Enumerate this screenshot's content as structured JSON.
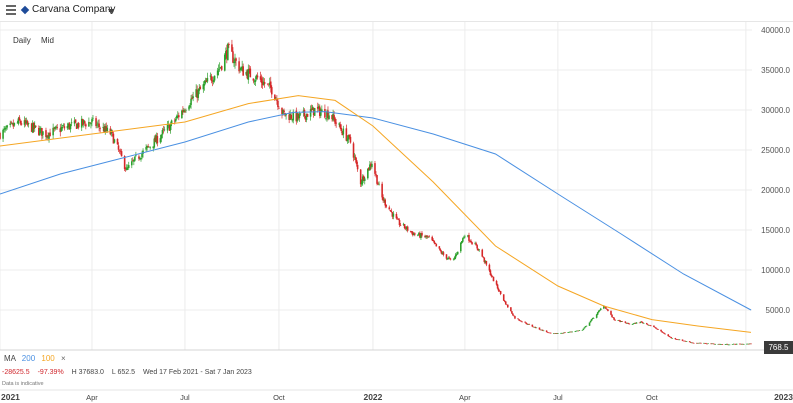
{
  "header": {
    "instrument": "Carvana Company"
  },
  "timeframe": {
    "interval": "Daily",
    "price_type": "Mid"
  },
  "legend": {
    "label": "MA",
    "period_1": "200",
    "period_2": "100",
    "close_glyph": "×"
  },
  "stats": {
    "change": "-28625.5",
    "change_pct": "-97.39%",
    "high": "H 37683.0",
    "low": "L 652.5",
    "range": "Wed 17 Feb 2021 - Sat 7 Jan 2023"
  },
  "note": "Data is indicative",
  "last_price": "768.5",
  "colors": {
    "up": "#2ca02c",
    "down": "#d62728",
    "ma200": "#4a90e2",
    "ma100": "#f5a623",
    "grid": "#ececec"
  },
  "chart_data": {
    "type": "candlestick",
    "y_ticks": [
      "40000.0",
      "35000.0",
      "30000.0",
      "25000.0",
      "20000.0",
      "15000.0",
      "10000.0",
      "5000.0"
    ],
    "x_ticks": [
      "2021",
      "Apr",
      "Jul",
      "Oct",
      "2022",
      "Apr",
      "Jul",
      "Oct",
      "2023"
    ],
    "ylim": [
      0,
      41000
    ],
    "xlim": [
      "2021-01-01",
      "2023-01-07"
    ],
    "grid": true,
    "price_path": [
      [
        "2021-01-01",
        27000
      ],
      [
        "2021-01-20",
        28500
      ],
      [
        "2021-02-15",
        27000
      ],
      [
        "2021-03-10",
        28000
      ],
      [
        "2021-04-01",
        28500
      ],
      [
        "2021-04-20",
        27000
      ],
      [
        "2021-05-05",
        22500
      ],
      [
        "2021-05-15",
        24000
      ],
      [
        "2021-06-01",
        26000
      ],
      [
        "2021-06-20",
        28500
      ],
      [
        "2021-07-05",
        31000
      ],
      [
        "2021-07-20",
        33000
      ],
      [
        "2021-08-05",
        35500
      ],
      [
        "2021-08-12",
        37500
      ],
      [
        "2021-08-25",
        35000
      ],
      [
        "2021-09-10",
        34000
      ],
      [
        "2021-09-25",
        32500
      ],
      [
        "2021-10-05",
        29500
      ],
      [
        "2021-10-20",
        29000
      ],
      [
        "2021-11-05",
        30000
      ],
      [
        "2021-11-20",
        29500
      ],
      [
        "2021-12-01",
        27500
      ],
      [
        "2021-12-10",
        26000
      ],
      [
        "2021-12-20",
        21000
      ],
      [
        "2021-12-31",
        23500
      ],
      [
        "2022-01-10",
        19000
      ],
      [
        "2022-01-25",
        16000
      ],
      [
        "2022-02-10",
        14500
      ],
      [
        "2022-02-25",
        14000
      ],
      [
        "2022-03-10",
        12000
      ],
      [
        "2022-03-20",
        11000
      ],
      [
        "2022-04-01",
        14500
      ],
      [
        "2022-04-15",
        12500
      ],
      [
        "2022-04-28",
        9000
      ],
      [
        "2022-05-10",
        6000
      ],
      [
        "2022-05-20",
        4000
      ],
      [
        "2022-06-05",
        3000
      ],
      [
        "2022-06-25",
        2000
      ],
      [
        "2022-07-10",
        2200
      ],
      [
        "2022-07-25",
        2500
      ],
      [
        "2022-08-08",
        4500
      ],
      [
        "2022-08-15",
        5600
      ],
      [
        "2022-08-25",
        3800
      ],
      [
        "2022-09-10",
        3200
      ],
      [
        "2022-09-20",
        3500
      ],
      [
        "2022-10-01",
        3000
      ],
      [
        "2022-10-20",
        1500
      ],
      [
        "2022-11-10",
        900
      ],
      [
        "2022-12-10",
        700
      ],
      [
        "2023-01-06",
        768.5
      ]
    ],
    "ma200": [
      [
        "2021-01-01",
        19500
      ],
      [
        "2021-03-01",
        22000
      ],
      [
        "2021-05-01",
        24000
      ],
      [
        "2021-07-01",
        26000
      ],
      [
        "2021-09-01",
        28500
      ],
      [
        "2021-10-15",
        29700
      ],
      [
        "2021-11-15",
        29800
      ],
      [
        "2022-01-01",
        29000
      ],
      [
        "2022-03-01",
        27000
      ],
      [
        "2022-05-01",
        24500
      ],
      [
        "2022-07-01",
        19500
      ],
      [
        "2022-09-01",
        14500
      ],
      [
        "2022-11-01",
        9500
      ],
      [
        "2023-01-06",
        5000
      ]
    ],
    "ma100": [
      [
        "2021-01-01",
        25500
      ],
      [
        "2021-04-01",
        27000
      ],
      [
        "2021-07-01",
        28500
      ],
      [
        "2021-09-01",
        30800
      ],
      [
        "2021-10-20",
        31800
      ],
      [
        "2021-11-25",
        31200
      ],
      [
        "2022-01-01",
        28000
      ],
      [
        "2022-03-01",
        21000
      ],
      [
        "2022-05-01",
        13000
      ],
      [
        "2022-07-01",
        8000
      ],
      [
        "2022-08-15",
        5500
      ],
      [
        "2022-10-01",
        3800
      ],
      [
        "2022-11-15",
        3000
      ],
      [
        "2023-01-06",
        2200
      ]
    ]
  }
}
